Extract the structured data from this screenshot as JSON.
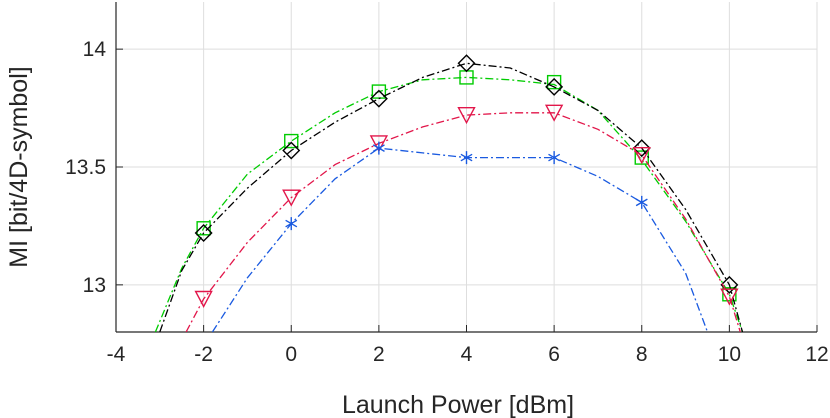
{
  "chart_data": {
    "type": "line",
    "xlabel": "Launch Power [dBm]",
    "ylabel": "MI [bit/4D-symbol]",
    "xlim": [
      -4,
      12
    ],
    "ylim": [
      12.8,
      14.2
    ],
    "xticks": [
      -4,
      -2,
      0,
      2,
      4,
      6,
      8,
      10,
      12
    ],
    "yticks": [
      13,
      13.5,
      14
    ],
    "xtick_labels": [
      "-4",
      "-2",
      "0",
      "2",
      "4",
      "6",
      "8",
      "10",
      "12"
    ],
    "ytick_labels": [
      "13",
      "13.5",
      "14"
    ],
    "grid": true,
    "legend": "none",
    "series": [
      {
        "color": "#00cc00",
        "marker": "square",
        "x": [
          -2,
          0,
          2,
          4,
          6,
          8,
          10
        ],
        "y": [
          13.24,
          13.61,
          13.82,
          13.88,
          13.86,
          13.54,
          12.96
        ],
        "fit_x": [
          -3.1,
          -2.5,
          -2,
          -1,
          0,
          1,
          2,
          3,
          4,
          5,
          6,
          7,
          8,
          9,
          10,
          10.3
        ],
        "fit_y": [
          12.8,
          13.07,
          13.24,
          13.47,
          13.61,
          13.73,
          13.82,
          13.87,
          13.88,
          13.87,
          13.85,
          13.74,
          13.53,
          13.27,
          12.96,
          12.8
        ]
      },
      {
        "color": "#000000",
        "marker": "diamond",
        "x": [
          -2,
          0,
          2,
          4,
          6,
          8,
          10
        ],
        "y": [
          13.22,
          13.57,
          13.79,
          13.94,
          13.84,
          13.58,
          13.0
        ],
        "fit_x": [
          -3.0,
          -2.5,
          -2,
          -1,
          0,
          1,
          2,
          3,
          4,
          5,
          6,
          7,
          8,
          9,
          10,
          10.3
        ],
        "fit_y": [
          12.8,
          13.06,
          13.22,
          13.41,
          13.57,
          13.69,
          13.79,
          13.88,
          13.94,
          13.92,
          13.84,
          13.74,
          13.58,
          13.32,
          13.0,
          12.8
        ]
      },
      {
        "color": "#e2164a",
        "marker": "triangle-down",
        "x": [
          -2,
          0,
          2,
          4,
          6,
          8,
          10
        ],
        "y": [
          12.94,
          13.37,
          13.6,
          13.72,
          13.73,
          13.55,
          12.95
        ],
        "fit_x": [
          -2.4,
          -2,
          -1,
          0,
          1,
          2,
          3,
          4,
          5,
          6,
          7,
          8,
          9,
          10,
          10.25
        ],
        "fit_y": [
          12.8,
          12.94,
          13.18,
          13.37,
          13.51,
          13.6,
          13.67,
          13.72,
          13.73,
          13.73,
          13.66,
          13.55,
          13.28,
          12.95,
          12.8
        ]
      },
      {
        "color": "#1a5ae0",
        "marker": "asterisk",
        "x": [
          0,
          2,
          4,
          6,
          8
        ],
        "y": [
          13.26,
          13.58,
          13.54,
          13.54,
          13.35
        ],
        "fit_x": [
          -1.8,
          -1,
          0,
          1,
          2,
          3,
          4,
          5,
          6,
          7,
          8,
          9,
          9.5
        ],
        "fit_y": [
          12.8,
          13.03,
          13.26,
          13.45,
          13.58,
          13.56,
          13.54,
          13.54,
          13.54,
          13.46,
          13.35,
          13.05,
          12.8
        ]
      }
    ]
  }
}
